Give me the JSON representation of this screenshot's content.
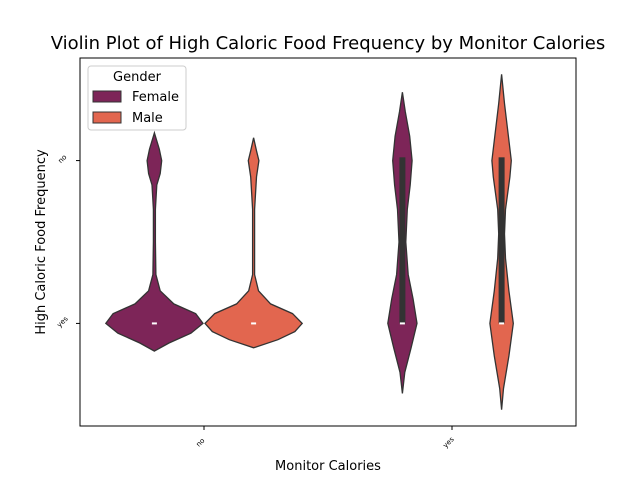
{
  "chart_data": {
    "type": "violin",
    "title": "Violin Plot of High Caloric Food Frequency by Monitor Calories",
    "x_label": "Monitor Calories",
    "y_label": "High Caloric Food Frequency",
    "categories": [
      "no",
      "yes"
    ],
    "ylim": [
      -0.63,
      1.63
    ],
    "yticks": [
      {
        "value": 0,
        "label": "yes"
      },
      {
        "value": 1,
        "label": "no"
      }
    ],
    "legend_title": "Gender",
    "legend_position": "upper left",
    "series": [
      {
        "name": "Female",
        "color": "#7d2558",
        "violins": [
          {
            "kde_y": [
              -0.17,
              -0.12,
              -0.06,
              0,
              0.06,
              0.12,
              0.2,
              0.3,
              0.5,
              0.7,
              0.85,
              0.92,
              1,
              1.07,
              1.17
            ],
            "kde_width": [
              0,
              0.3,
              0.75,
              1,
              0.85,
              0.4,
              0.12,
              0.03,
              0.02,
              0.02,
              0.05,
              0.12,
              0.15,
              0.1,
              0
            ],
            "q1": 0,
            "median": 0,
            "q3": 0
          },
          {
            "kde_y": [
              -0.43,
              -0.3,
              -0.15,
              0,
              0.15,
              0.3,
              0.5,
              0.7,
              0.85,
              1,
              1.15,
              1.3,
              1.42
            ],
            "kde_width": [
              0,
              0.05,
              0.18,
              0.3,
              0.22,
              0.12,
              0.07,
              0.1,
              0.16,
              0.2,
              0.15,
              0.06,
              0
            ],
            "q1": 0,
            "median": 0,
            "q3": 1.02
          }
        ]
      },
      {
        "name": "Male",
        "color": "#e2664f",
        "violins": [
          {
            "kde_y": [
              -0.15,
              -0.1,
              -0.05,
              0,
              0.06,
              0.12,
              0.2,
              0.3,
              0.5,
              0.7,
              0.9,
              1,
              1.06,
              1.14
            ],
            "kde_width": [
              0,
              0.5,
              0.85,
              1,
              0.8,
              0.35,
              0.1,
              0.02,
              0.02,
              0.02,
              0.06,
              0.11,
              0.06,
              0
            ],
            "q1": 0,
            "median": 0,
            "q3": 0
          },
          {
            "kde_y": [
              -0.53,
              -0.4,
              -0.2,
              0,
              0.2,
              0.4,
              0.55,
              0.7,
              0.9,
              1,
              1.15,
              1.35,
              1.53
            ],
            "kde_width": [
              0,
              0.04,
              0.15,
              0.24,
              0.15,
              0.08,
              0.06,
              0.08,
              0.17,
              0.2,
              0.14,
              0.06,
              0
            ],
            "q1": 0,
            "median": 0,
            "q3": 1.02
          }
        ]
      }
    ]
  }
}
